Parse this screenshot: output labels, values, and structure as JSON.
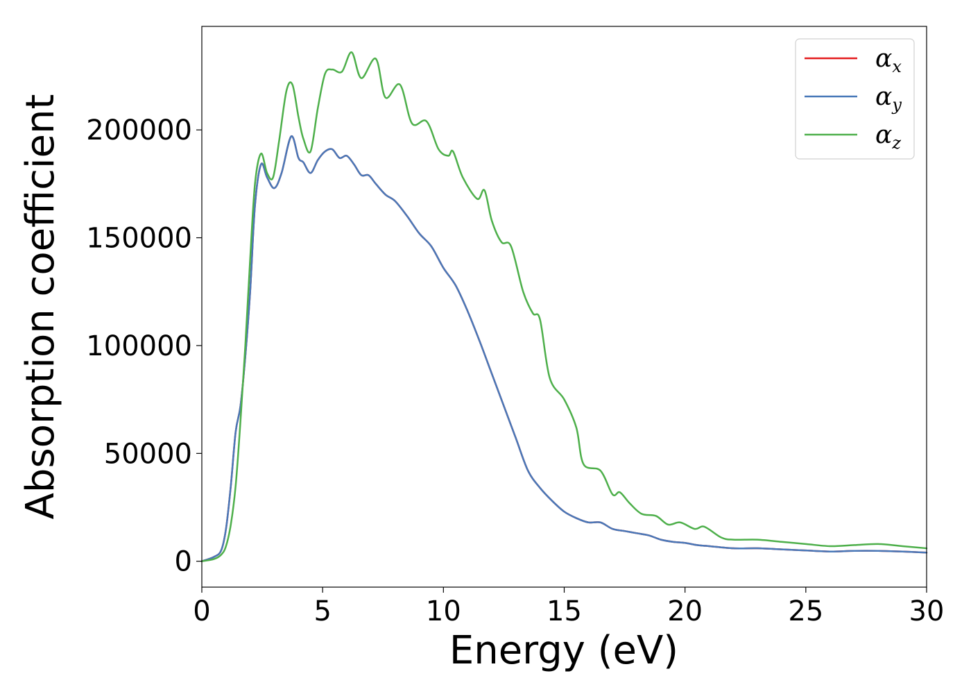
{
  "chart_data": {
    "type": "line",
    "title": "",
    "xlabel": "Energy (eV)",
    "ylabel": "Absorption coefficient",
    "xlim": [
      0,
      30
    ],
    "ylim": [
      -12000,
      248000
    ],
    "xticks": [
      0,
      5,
      10,
      15,
      20,
      25,
      30
    ],
    "xtick_labels": [
      "0",
      "5",
      "10",
      "15",
      "20",
      "25",
      "30"
    ],
    "yticks": [
      0,
      50000,
      100000,
      150000,
      200000
    ],
    "ytick_labels": [
      "0",
      "50000",
      "100000",
      "150000",
      "200000"
    ],
    "grid": false,
    "legend": {
      "placement": "top-right"
    },
    "series": [
      {
        "name": "α_x",
        "label_main": "α",
        "label_sub": "x",
        "color": "#e41a1c",
        "x": [
          0,
          0.5,
          0.8,
          1.0,
          1.2,
          1.4,
          1.6,
          1.8,
          2.0,
          2.2,
          2.45,
          2.7,
          3.0,
          3.3,
          3.7,
          4.0,
          4.2,
          4.5,
          4.8,
          5.1,
          5.4,
          5.7,
          6.0,
          6.3,
          6.6,
          6.9,
          7.2,
          7.6,
          8.0,
          8.5,
          9.0,
          9.5,
          10.0,
          10.5,
          11.0,
          11.5,
          12.0,
          12.5,
          13.0,
          13.5,
          14.0,
          14.5,
          15.0,
          15.5,
          16.0,
          16.5,
          17.0,
          17.5,
          18.0,
          18.5,
          19.0,
          19.5,
          20.0,
          20.5,
          21.0,
          22.0,
          23.0,
          24.0,
          25.0,
          26.0,
          27.0,
          28.0,
          29.0,
          30.0
        ],
        "values": [
          0,
          2000,
          5000,
          15000,
          35000,
          60000,
          72000,
          95000,
          125000,
          165000,
          184000,
          178000,
          173000,
          180000,
          197000,
          187000,
          185000,
          180000,
          186000,
          190000,
          191000,
          187000,
          188000,
          184000,
          179000,
          179000,
          175000,
          170000,
          167000,
          160000,
          152000,
          146000,
          136000,
          128000,
          116000,
          102000,
          87000,
          72000,
          57000,
          42000,
          34000,
          28000,
          23000,
          20000,
          18000,
          18000,
          15000,
          14000,
          13000,
          12000,
          10000,
          9000,
          8500,
          7500,
          7000,
          6000,
          6000,
          5500,
          5000,
          4500,
          4800,
          4800,
          4500,
          4000
        ]
      },
      {
        "name": "α_y",
        "label_main": "α",
        "label_sub": "y",
        "color": "#4878b8",
        "x": [
          0,
          0.5,
          0.8,
          1.0,
          1.2,
          1.4,
          1.6,
          1.8,
          2.0,
          2.2,
          2.45,
          2.7,
          3.0,
          3.3,
          3.7,
          4.0,
          4.2,
          4.5,
          4.8,
          5.1,
          5.4,
          5.7,
          6.0,
          6.3,
          6.6,
          6.9,
          7.2,
          7.6,
          8.0,
          8.5,
          9.0,
          9.5,
          10.0,
          10.5,
          11.0,
          11.5,
          12.0,
          12.5,
          13.0,
          13.5,
          14.0,
          14.5,
          15.0,
          15.5,
          16.0,
          16.5,
          17.0,
          17.5,
          18.0,
          18.5,
          19.0,
          19.5,
          20.0,
          20.5,
          21.0,
          22.0,
          23.0,
          24.0,
          25.0,
          26.0,
          27.0,
          28.0,
          29.0,
          30.0
        ],
        "values": [
          0,
          2000,
          5000,
          15000,
          35000,
          60000,
          72000,
          95000,
          125000,
          165000,
          184000,
          178000,
          173000,
          180000,
          197000,
          187000,
          185000,
          180000,
          186000,
          190000,
          191000,
          187000,
          188000,
          184000,
          179000,
          179000,
          175000,
          170000,
          167000,
          160000,
          152000,
          146000,
          136000,
          128000,
          116000,
          102000,
          87000,
          72000,
          57000,
          42000,
          34000,
          28000,
          23000,
          20000,
          18000,
          18000,
          15000,
          14000,
          13000,
          12000,
          10000,
          9000,
          8500,
          7500,
          7000,
          6000,
          6000,
          5500,
          5000,
          4500,
          4800,
          4800,
          4500,
          4000
        ]
      },
      {
        "name": "α_z",
        "label_main": "α",
        "label_sub": "z",
        "color": "#4daf4a",
        "x": [
          0,
          0.5,
          0.8,
          1.0,
          1.2,
          1.4,
          1.6,
          1.8,
          2.0,
          2.2,
          2.45,
          2.7,
          2.95,
          3.2,
          3.5,
          3.75,
          4.0,
          4.2,
          4.5,
          4.8,
          5.1,
          5.4,
          5.8,
          6.2,
          6.6,
          7.2,
          7.6,
          8.2,
          8.7,
          9.3,
          9.8,
          10.2,
          10.4,
          10.8,
          11.4,
          11.7,
          12.0,
          12.4,
          12.8,
          13.3,
          13.7,
          14.0,
          14.4,
          15.0,
          15.5,
          15.8,
          16.5,
          17.0,
          17.3,
          17.7,
          18.2,
          18.8,
          19.3,
          19.8,
          20.4,
          20.8,
          21.5,
          22.0,
          23.0,
          24.0,
          25.0,
          26.0,
          27.0,
          28.0,
          29.0,
          30.0
        ],
        "values": [
          0,
          1000,
          3000,
          7000,
          17000,
          35000,
          65000,
          100000,
          140000,
          175000,
          189000,
          180000,
          178000,
          195000,
          218000,
          221000,
          206000,
          196000,
          190000,
          210000,
          226000,
          228000,
          227000,
          236000,
          224000,
          233000,
          215000,
          221000,
          203000,
          204000,
          191000,
          188000,
          190000,
          178000,
          168000,
          172000,
          158000,
          148000,
          146000,
          125000,
          115000,
          112000,
          85000,
          75000,
          62000,
          45000,
          42000,
          31000,
          32000,
          27000,
          22000,
          21000,
          17000,
          18000,
          15000,
          16000,
          11000,
          10000,
          10000,
          9000,
          8000,
          7000,
          7500,
          8000,
          7000,
          6000
        ]
      }
    ]
  }
}
